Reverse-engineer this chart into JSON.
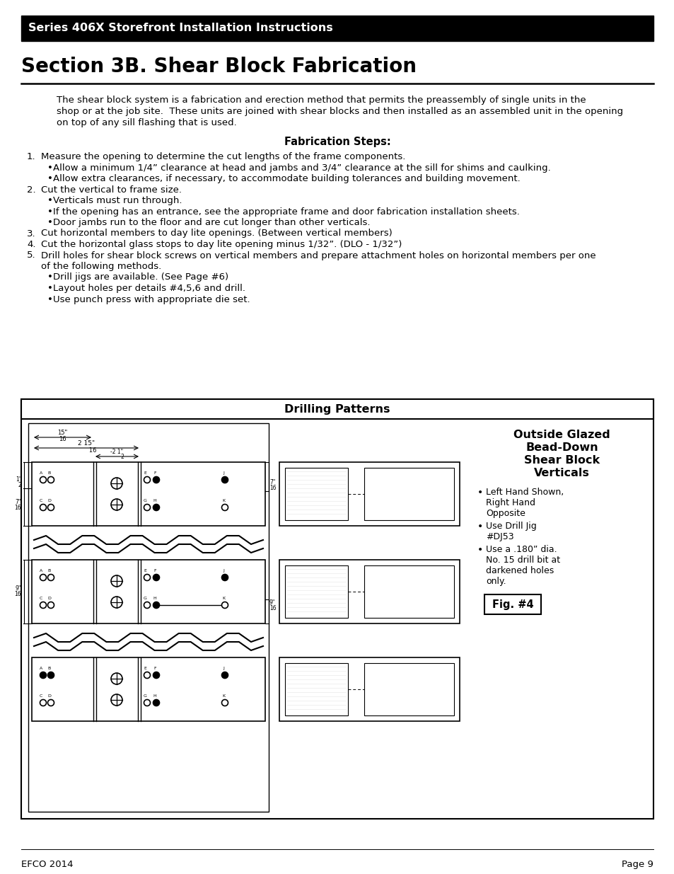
{
  "page_bg": "#ffffff",
  "header_bg": "#000000",
  "header_text": "Series 406X Storefront Installation Instructions",
  "header_text_color": "#ffffff",
  "section_title": "Section 3B. Shear Block Fabrication",
  "body_paragraph": "The shear block system is a fabrication and erection method that permits the preassembly of single units in the\nshop or at the job site.  These units are joined with shear blocks and then installed as an assembled unit in the opening\non top of any sill flashing that is used.",
  "fab_steps_title": "Fabrication Steps:",
  "step1_num": "1.",
  "step1_text": "Measure the opening to determine the cut lengths of the frame components.",
  "step1_b1": "Allow a minimum 1/4” clearance at head and jambs and 3/4” clearance at the sill for shims and caulking.",
  "step1_b2": "Allow extra clearances, if necessary, to accommodate building tolerances and building movement.",
  "step2_num": "2.",
  "step2_text": "Cut the vertical to frame size.",
  "step2_b1": "Verticals must run through.",
  "step2_b2": "If the opening has an entrance, see the appropriate frame and door fabrication installation sheets.",
  "step2_b3": "Door jambs run to the floor and are cut longer than other verticals.",
  "step3_num": "3.",
  "step3_text": "Cut horizontal members to day lite openings. (Between vertical members)",
  "step4_num": "4.",
  "step4_text": "Cut the horizontal glass stops to day lite opening minus 1/32”. (DLO - 1/32”)",
  "step5_num": "5.",
  "step5_text": "Drill holes for shear block screws on vertical members and prepare attachment holes on horizontal members per one",
  "step5_text2": "of the following methods.",
  "step5_b1": "Drill jigs are available. (See Page #6)",
  "step5_b2": "Layout holes per details #4,5,6 and drill.",
  "step5_b3": "Use punch press with appropriate die set.",
  "drilling_title": "Drilling Patterns",
  "right_panel_title_line1": "Outside Glazed",
  "right_panel_title_line2": "Bead-Down",
  "right_panel_title_line3": "Shear Block",
  "right_panel_title_line4": "Verticals",
  "rb1_line1": "Left Hand Shown,",
  "rb1_line2": "Right Hand",
  "rb1_line3": "Opposite",
  "rb2_line1": "Use Drill Jig",
  "rb2_line2": "#DJ53",
  "rb3_line1": "Use a .180” dia.",
  "rb3_line2": "No. 15 drill bit at",
  "rb3_line3": "darkened holes",
  "rb3_line4": "only.",
  "fig_label": "Fig. #4",
  "footer_left": "EFCO 2014",
  "footer_right": "Page 9"
}
